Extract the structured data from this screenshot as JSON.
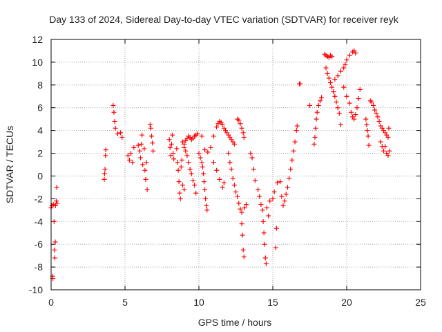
{
  "chart_data": {
    "type": "scatter",
    "title": "Day 133 of 2024, Sidereal Day-to-day VTEC variation (SDTVAR) for receiver reyk",
    "xlabel": "GPS time / hours",
    "ylabel": "SDTVAR / TECUs",
    "xlim": [
      0,
      25
    ],
    "ylim": [
      -10,
      12
    ],
    "xticks": [
      0,
      5,
      10,
      15,
      20,
      25
    ],
    "yticks": [
      -10,
      -8,
      -6,
      -4,
      -2,
      0,
      2,
      4,
      6,
      8,
      10,
      12
    ],
    "xtick_labels": [
      "0",
      "5",
      "10",
      "15",
      "20",
      "25"
    ],
    "ytick_labels": [
      "-10",
      "-8",
      "-6",
      "-4",
      "-2",
      "0",
      "2",
      "4",
      "6",
      "8",
      "10",
      "12"
    ],
    "grid": true,
    "marker": "+",
    "series": [
      {
        "name": "SDTVAR",
        "color": "#ff0000",
        "points": [
          [
            0.0,
            -2.8
          ],
          [
            0.05,
            -2.6
          ],
          [
            0.1,
            -8.8
          ],
          [
            0.12,
            -9.0
          ],
          [
            0.15,
            -2.5
          ],
          [
            0.2,
            -4.0
          ],
          [
            0.22,
            -6.5
          ],
          [
            0.25,
            -7.2
          ],
          [
            0.28,
            -5.8
          ],
          [
            0.3,
            -2.6
          ],
          [
            0.35,
            -2.2
          ],
          [
            0.38,
            -1.0
          ],
          [
            0.4,
            -2.4
          ],
          [
            3.6,
            -0.3
          ],
          [
            3.62,
            0.2
          ],
          [
            3.65,
            0.6
          ],
          [
            3.68,
            1.8
          ],
          [
            3.7,
            2.3
          ],
          [
            4.2,
            6.2
          ],
          [
            4.25,
            5.6
          ],
          [
            4.3,
            4.8
          ],
          [
            4.35,
            4.2
          ],
          [
            4.5,
            3.7
          ],
          [
            4.7,
            3.8
          ],
          [
            4.8,
            3.4
          ],
          [
            5.2,
            1.8
          ],
          [
            5.3,
            1.4
          ],
          [
            5.4,
            2.0
          ],
          [
            5.5,
            1.2
          ],
          [
            5.6,
            2.5
          ],
          [
            5.9,
            2.7
          ],
          [
            6.0,
            2.2
          ],
          [
            6.05,
            1.6
          ],
          [
            6.1,
            2.8
          ],
          [
            6.15,
            3.6
          ],
          [
            6.2,
            1.0
          ],
          [
            6.3,
            2.4
          ],
          [
            6.35,
            0.5
          ],
          [
            6.4,
            -0.3
          ],
          [
            6.45,
            1.2
          ],
          [
            6.5,
            -1.2
          ],
          [
            6.7,
            4.5
          ],
          [
            6.75,
            4.2
          ],
          [
            6.8,
            3.5
          ],
          [
            6.85,
            2.9
          ],
          [
            6.9,
            2.2
          ],
          [
            8.0,
            3.2
          ],
          [
            8.05,
            2.5
          ],
          [
            8.1,
            1.8
          ],
          [
            8.15,
            2.8
          ],
          [
            8.2,
            3.6
          ],
          [
            8.25,
            2.0
          ],
          [
            8.3,
            1.5
          ],
          [
            8.5,
            2.4
          ],
          [
            8.55,
            1.2
          ],
          [
            8.6,
            0.5
          ],
          [
            8.65,
            -0.5
          ],
          [
            8.7,
            -1.5
          ],
          [
            8.75,
            -2.0
          ],
          [
            8.8,
            0.8
          ],
          [
            8.85,
            1.4
          ],
          [
            8.9,
            -0.8
          ],
          [
            9.0,
            -1.2
          ],
          [
            8.9,
            3.0
          ],
          [
            9.0,
            2.8
          ],
          [
            9.1,
            3.1
          ],
          [
            9.2,
            3.3
          ],
          [
            9.3,
            3.5
          ],
          [
            9.4,
            3.4
          ],
          [
            9.5,
            3.2
          ],
          [
            9.6,
            3.3
          ],
          [
            9.7,
            3.5
          ],
          [
            9.8,
            3.6
          ],
          [
            9.9,
            3.7
          ],
          [
            9.0,
            2.5
          ],
          [
            9.1,
            2.2
          ],
          [
            9.2,
            1.8
          ],
          [
            9.3,
            1.2
          ],
          [
            9.4,
            0.6
          ],
          [
            9.5,
            0.2
          ],
          [
            9.6,
            -0.4
          ],
          [
            9.7,
            -0.8
          ],
          [
            9.8,
            -1.5
          ],
          [
            10.0,
            2.0
          ],
          [
            10.1,
            1.6
          ],
          [
            10.2,
            1.2
          ],
          [
            10.25,
            0.8
          ],
          [
            10.3,
            0.2
          ],
          [
            10.35,
            -0.5
          ],
          [
            10.4,
            -1.2
          ],
          [
            10.45,
            -2.0
          ],
          [
            10.5,
            -2.6
          ],
          [
            10.55,
            -3.0
          ],
          [
            10.2,
            3.5
          ],
          [
            10.4,
            2.3
          ],
          [
            10.6,
            2.1
          ],
          [
            10.8,
            2.5
          ],
          [
            11.0,
            3.5
          ],
          [
            11.2,
            4.3
          ],
          [
            11.3,
            4.6
          ],
          [
            11.4,
            4.8
          ],
          [
            11.5,
            4.7
          ],
          [
            11.6,
            4.5
          ],
          [
            11.7,
            4.2
          ],
          [
            11.8,
            4.0
          ],
          [
            11.9,
            3.8
          ],
          [
            12.0,
            3.6
          ],
          [
            12.1,
            3.4
          ],
          [
            12.2,
            3.2
          ],
          [
            12.3,
            3.0
          ],
          [
            12.4,
            2.8
          ],
          [
            11.0,
            1.2
          ],
          [
            11.2,
            0.5
          ],
          [
            11.4,
            -0.3
          ],
          [
            11.6,
            -1.0
          ],
          [
            11.7,
            -0.6
          ],
          [
            12.0,
            2.0
          ],
          [
            12.1,
            1.2
          ],
          [
            12.2,
            0.6
          ],
          [
            12.3,
            -0.2
          ],
          [
            12.4,
            -0.8
          ],
          [
            12.5,
            -1.4
          ],
          [
            12.6,
            -1.8
          ],
          [
            12.7,
            -2.4
          ],
          [
            12.8,
            -2.9
          ],
          [
            12.9,
            -3.2
          ],
          [
            12.6,
            5.0
          ],
          [
            12.7,
            4.9
          ],
          [
            12.8,
            4.6
          ],
          [
            12.9,
            4.2
          ],
          [
            13.0,
            3.8
          ],
          [
            13.05,
            3.4
          ],
          [
            12.9,
            -4.2
          ],
          [
            12.95,
            -5.2
          ],
          [
            13.0,
            -6.5
          ],
          [
            13.05,
            -7.1
          ],
          [
            13.1,
            -2.8
          ],
          [
            13.2,
            -2.5
          ],
          [
            13.5,
            2.0
          ],
          [
            13.6,
            1.6
          ],
          [
            13.7,
            0.6
          ],
          [
            13.8,
            -0.4
          ],
          [
            14.0,
            -1.2
          ],
          [
            14.1,
            -1.8
          ],
          [
            14.2,
            -2.5
          ],
          [
            14.3,
            -3.0
          ],
          [
            14.35,
            -4.0
          ],
          [
            14.4,
            -5.0
          ],
          [
            14.45,
            -6.0
          ],
          [
            14.5,
            -7.2
          ],
          [
            14.55,
            -7.7
          ],
          [
            14.6,
            -2.8
          ],
          [
            14.7,
            -3.5
          ],
          [
            14.8,
            -2.2
          ],
          [
            15.0,
            -2.0
          ],
          [
            15.1,
            -1.4
          ],
          [
            15.2,
            -6.3
          ],
          [
            15.25,
            -4.6
          ],
          [
            15.3,
            -0.6
          ],
          [
            15.5,
            -0.5
          ],
          [
            15.6,
            -1.8
          ],
          [
            15.7,
            -2.6
          ],
          [
            15.8,
            -2.2
          ],
          [
            15.9,
            -1.6
          ],
          [
            16.0,
            -1.0
          ],
          [
            16.1,
            -0.2
          ],
          [
            16.2,
            0.6
          ],
          [
            16.3,
            1.4
          ],
          [
            16.4,
            2.2
          ],
          [
            16.5,
            3.0
          ],
          [
            16.6,
            4.0
          ],
          [
            16.65,
            4.4
          ],
          [
            16.8,
            8.1
          ],
          [
            16.85,
            8.1
          ],
          [
            17.5,
            6.2
          ],
          [
            17.8,
            2.8
          ],
          [
            17.85,
            3.4
          ],
          [
            17.9,
            4.2
          ],
          [
            17.95,
            5.0
          ],
          [
            18.0,
            5.6
          ],
          [
            18.1,
            6.2
          ],
          [
            18.2,
            6.6
          ],
          [
            18.3,
            6.9
          ],
          [
            18.5,
            10.7
          ],
          [
            18.6,
            10.6
          ],
          [
            18.7,
            10.5
          ],
          [
            18.8,
            10.4
          ],
          [
            18.9,
            10.6
          ],
          [
            19.0,
            10.5
          ],
          [
            18.6,
            9.5
          ],
          [
            18.7,
            9.0
          ],
          [
            18.8,
            8.6
          ],
          [
            18.9,
            8.2
          ],
          [
            19.0,
            7.8
          ],
          [
            19.1,
            7.4
          ],
          [
            19.2,
            7.0
          ],
          [
            19.3,
            6.5
          ],
          [
            19.4,
            6.0
          ],
          [
            19.5,
            5.5
          ],
          [
            19.6,
            4.5
          ],
          [
            19.2,
            8.5
          ],
          [
            19.4,
            8.8
          ],
          [
            19.6,
            9.2
          ],
          [
            19.8,
            9.5
          ],
          [
            19.9,
            9.8
          ],
          [
            20.0,
            10.2
          ],
          [
            20.2,
            10.6
          ],
          [
            20.4,
            10.9
          ],
          [
            20.5,
            11.0
          ],
          [
            20.6,
            10.8
          ],
          [
            19.8,
            7.8
          ],
          [
            20.0,
            7.0
          ],
          [
            20.2,
            6.4
          ],
          [
            20.3,
            5.6
          ],
          [
            20.4,
            5.2
          ],
          [
            20.5,
            5.0
          ],
          [
            20.6,
            5.4
          ],
          [
            20.7,
            6.0
          ],
          [
            20.8,
            6.8
          ],
          [
            20.9,
            7.6
          ],
          [
            21.3,
            5.0
          ],
          [
            21.35,
            4.5
          ],
          [
            21.4,
            4.0
          ],
          [
            21.45,
            3.5
          ],
          [
            21.5,
            2.7
          ],
          [
            21.6,
            6.6
          ],
          [
            21.7,
            6.5
          ],
          [
            21.8,
            6.2
          ],
          [
            21.9,
            5.8
          ],
          [
            22.0,
            5.5
          ],
          [
            22.1,
            5.2
          ],
          [
            22.2,
            4.8
          ],
          [
            22.3,
            4.4
          ],
          [
            22.4,
            4.2
          ],
          [
            22.5,
            4.0
          ],
          [
            22.6,
            3.8
          ],
          [
            22.7,
            3.6
          ],
          [
            22.8,
            3.4
          ],
          [
            22.3,
            3.0
          ],
          [
            22.4,
            2.6
          ],
          [
            22.5,
            2.2
          ],
          [
            22.6,
            2.6
          ],
          [
            22.7,
            2.0
          ],
          [
            22.8,
            1.8
          ],
          [
            22.85,
            4.2
          ],
          [
            22.9,
            2.2
          ]
        ]
      }
    ]
  }
}
